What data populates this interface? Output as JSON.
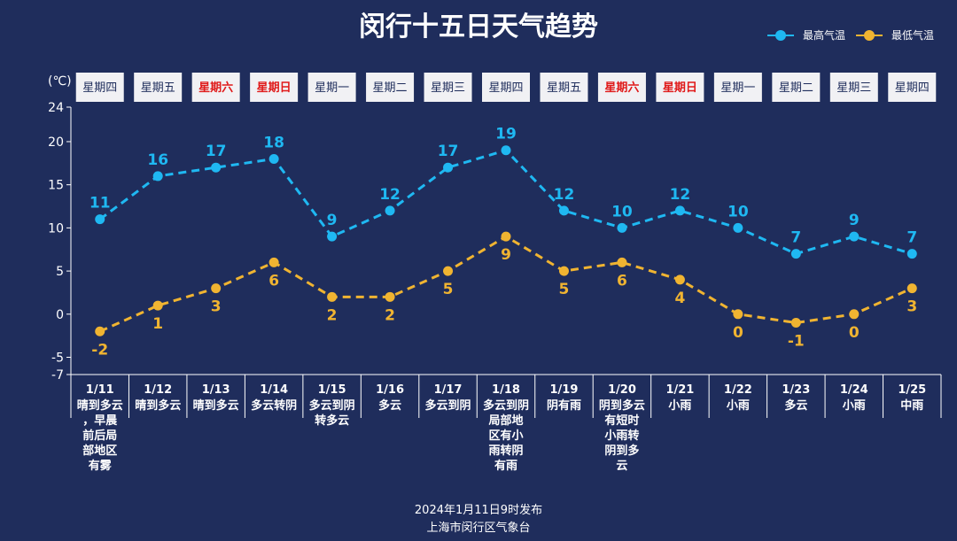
{
  "chart_data": {
    "type": "line",
    "title": "闵行十五日天气趋势",
    "ylabel": "(℃)",
    "ylim": [
      -7,
      24
    ],
    "yticks": [
      24,
      20,
      15,
      10,
      5,
      0,
      -5,
      -7
    ],
    "categories": [
      "1/11",
      "1/12",
      "1/13",
      "1/14",
      "1/15",
      "1/16",
      "1/17",
      "1/18",
      "1/19",
      "1/20",
      "1/21",
      "1/22",
      "1/23",
      "1/24",
      "1/25"
    ],
    "weekdays": [
      "星期四",
      "星期五",
      "星期六",
      "星期日",
      "星期一",
      "星期二",
      "星期三",
      "星期四",
      "星期五",
      "星期六",
      "星期日",
      "星期一",
      "星期二",
      "星期三",
      "星期四"
    ],
    "weekend": [
      false,
      false,
      true,
      true,
      false,
      false,
      false,
      false,
      false,
      true,
      true,
      false,
      false,
      false,
      false
    ],
    "descriptions": [
      [
        "晴到多云",
        "，早晨",
        "前后局",
        "部地区",
        "有雾"
      ],
      [
        "晴到多云"
      ],
      [
        "晴到多云"
      ],
      [
        "多云转阴"
      ],
      [
        "多云到阴",
        "转多云"
      ],
      [
        "多云"
      ],
      [
        "多云到阴"
      ],
      [
        "多云到阴",
        "局部地",
        "区有小",
        "雨转阴",
        "有雨"
      ],
      [
        "阴有雨"
      ],
      [
        "阴到多云",
        "有短时",
        "小雨转",
        "阴到多",
        "云"
      ],
      [
        "小雨"
      ],
      [
        "小雨"
      ],
      [
        "多云"
      ],
      [
        "小雨"
      ],
      [
        "中雨"
      ]
    ],
    "series": [
      {
        "name": "最高气温",
        "color": "#1fb8f2",
        "values": [
          11,
          16,
          17,
          18,
          9,
          12,
          17,
          19,
          12,
          10,
          12,
          10,
          7,
          9,
          7
        ]
      },
      {
        "name": "最低气温",
        "color": "#f0b431",
        "values": [
          -2,
          1,
          3,
          6,
          2,
          2,
          5,
          9,
          5,
          6,
          4,
          0,
          -1,
          0,
          3
        ]
      }
    ],
    "legend_position": "top-right"
  },
  "footer": {
    "publish": "2024年1月11日9时发布",
    "source": "上海市闵行区气象台"
  }
}
